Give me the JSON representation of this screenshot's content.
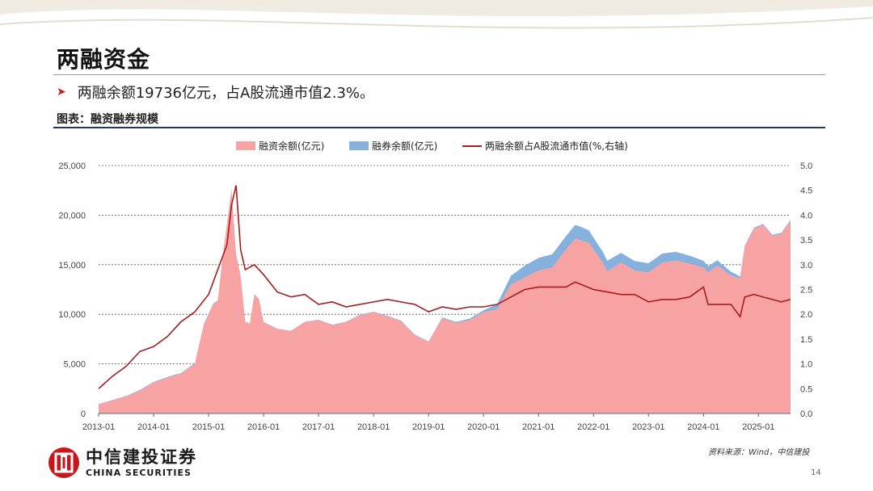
{
  "page": {
    "title": "两融资金",
    "bullet": "两融余额19736亿元，占A股流通市值2.3%。",
    "caption": "图表：融资融券规模",
    "source": "资料来源：Wind，中信建投",
    "page_number": "14",
    "logo_cn": "中信建投证券",
    "logo_en": "CHINA SECURITIES"
  },
  "colors": {
    "financing": "#f7a3a3",
    "securities_lending": "#86b1dd",
    "ratio_line": "#a71d1d",
    "accent_red": "#c21f1f"
  },
  "chart_data": {
    "type": "area",
    "x_ticks": [
      "2013-01",
      "2014-01",
      "2015-01",
      "2016-01",
      "2017-01",
      "2018-01",
      "2019-01",
      "2020-01",
      "2021-01",
      "2022-01",
      "2023-01",
      "2024-01",
      "2025-01"
    ],
    "x_range": [
      "2013-01",
      "2025-08"
    ],
    "y_left": {
      "ticks": [
        "0",
        "5,000",
        "10,000",
        "15,000",
        "20,000",
        "25,000"
      ],
      "range": [
        0,
        25000
      ]
    },
    "y_right": {
      "ticks": [
        "0.0",
        "0.5",
        "1.0",
        "1.5",
        "2.0",
        "2.5",
        "3.0",
        "3.5",
        "4.0",
        "4.5",
        "5.0"
      ],
      "range": [
        0,
        5.0
      ]
    },
    "grid": "horizontal dashed",
    "legend_position": "top",
    "series": [
      {
        "name": "融资余额(亿元)",
        "axis": "left",
        "kind": "area",
        "points": [
          [
            "2013-01",
            900
          ],
          [
            "2013-04",
            1300
          ],
          [
            "2013-07",
            1700
          ],
          [
            "2013-10",
            2300
          ],
          [
            "2014-01",
            3100
          ],
          [
            "2014-04",
            3600
          ],
          [
            "2014-07",
            4000
          ],
          [
            "2014-10",
            5000
          ],
          [
            "2014-12",
            9000
          ],
          [
            "2015-02",
            11000
          ],
          [
            "2015-03",
            11300
          ],
          [
            "2015-04",
            15500
          ],
          [
            "2015-05",
            19000
          ],
          [
            "2015-06",
            22500
          ],
          [
            "2015-07",
            16000
          ],
          [
            "2015-08",
            13800
          ],
          [
            "2015-09",
            9200
          ],
          [
            "2015-10",
            9000
          ],
          [
            "2015-11",
            12000
          ],
          [
            "2015-12",
            11500
          ],
          [
            "2016-01",
            9200
          ],
          [
            "2016-04",
            8500
          ],
          [
            "2016-07",
            8300
          ],
          [
            "2016-10",
            9200
          ],
          [
            "2017-01",
            9400
          ],
          [
            "2017-04",
            8900
          ],
          [
            "2017-07",
            9200
          ],
          [
            "2017-10",
            9900
          ],
          [
            "2018-01",
            10200
          ],
          [
            "2018-04",
            9800
          ],
          [
            "2018-07",
            9300
          ],
          [
            "2018-10",
            7900
          ],
          [
            "2019-01",
            7200
          ],
          [
            "2019-04",
            9600
          ],
          [
            "2019-07",
            9100
          ],
          [
            "2019-10",
            9400
          ],
          [
            "2020-01",
            10200
          ],
          [
            "2020-04",
            10500
          ],
          [
            "2020-07",
            13000
          ],
          [
            "2020-10",
            13700
          ],
          [
            "2021-01",
            14400
          ],
          [
            "2021-04",
            14700
          ],
          [
            "2021-07",
            16500
          ],
          [
            "2021-09",
            17600
          ],
          [
            "2021-12",
            17200
          ],
          [
            "2022-03",
            15200
          ],
          [
            "2022-04",
            14300
          ],
          [
            "2022-07",
            15200
          ],
          [
            "2022-10",
            14400
          ],
          [
            "2023-01",
            14200
          ],
          [
            "2023-04",
            15200
          ],
          [
            "2023-07",
            15400
          ],
          [
            "2023-10",
            15100
          ],
          [
            "2024-01",
            14700
          ],
          [
            "2024-02",
            14200
          ],
          [
            "2024-04",
            14900
          ],
          [
            "2024-07",
            13900
          ],
          [
            "2024-09",
            13600
          ],
          [
            "2024-10",
            16800
          ],
          [
            "2024-12",
            18600
          ],
          [
            "2025-02",
            19000
          ],
          [
            "2025-04",
            17900
          ],
          [
            "2025-06",
            18100
          ],
          [
            "2025-08",
            19400
          ]
        ]
      },
      {
        "name": "融券余额(亿元)",
        "axis": "left",
        "kind": "stacked-area",
        "points": [
          [
            "2013-01",
            50
          ],
          [
            "2014-01",
            80
          ],
          [
            "2015-01",
            80
          ],
          [
            "2015-06",
            100
          ],
          [
            "2016-01",
            40
          ],
          [
            "2017-01",
            50
          ],
          [
            "2018-01",
            60
          ],
          [
            "2019-01",
            60
          ],
          [
            "2020-01",
            200
          ],
          [
            "2020-07",
            900
          ],
          [
            "2020-10",
            1200
          ],
          [
            "2021-01",
            1300
          ],
          [
            "2021-07",
            1400
          ],
          [
            "2021-10",
            1400
          ],
          [
            "2022-01",
            1200
          ],
          [
            "2022-07",
            1000
          ],
          [
            "2023-01",
            950
          ],
          [
            "2023-07",
            900
          ],
          [
            "2024-01",
            700
          ],
          [
            "2024-07",
            400
          ],
          [
            "2024-10",
            120
          ],
          [
            "2025-01",
            120
          ],
          [
            "2025-08",
            120
          ]
        ]
      },
      {
        "name": "两融余额占A股流通市值(%,右轴)",
        "axis": "right",
        "kind": "line",
        "points": [
          [
            "2013-01",
            0.5
          ],
          [
            "2013-04",
            0.75
          ],
          [
            "2013-07",
            0.95
          ],
          [
            "2013-10",
            1.25
          ],
          [
            "2014-01",
            1.35
          ],
          [
            "2014-04",
            1.55
          ],
          [
            "2014-07",
            1.85
          ],
          [
            "2014-10",
            2.05
          ],
          [
            "2015-01",
            2.4
          ],
          [
            "2015-03",
            2.9
          ],
          [
            "2015-05",
            3.4
          ],
          [
            "2015-06",
            4.2
          ],
          [
            "2015-07",
            4.6
          ],
          [
            "2015-08",
            3.3
          ],
          [
            "2015-09",
            2.9
          ],
          [
            "2015-11",
            3.0
          ],
          [
            "2016-01",
            2.8
          ],
          [
            "2016-04",
            2.45
          ],
          [
            "2016-07",
            2.35
          ],
          [
            "2016-10",
            2.4
          ],
          [
            "2017-01",
            2.2
          ],
          [
            "2017-04",
            2.25
          ],
          [
            "2017-07",
            2.15
          ],
          [
            "2017-10",
            2.2
          ],
          [
            "2018-01",
            2.25
          ],
          [
            "2018-04",
            2.3
          ],
          [
            "2018-07",
            2.25
          ],
          [
            "2018-10",
            2.2
          ],
          [
            "2019-01",
            2.05
          ],
          [
            "2019-04",
            2.15
          ],
          [
            "2019-07",
            2.1
          ],
          [
            "2019-10",
            2.15
          ],
          [
            "2020-01",
            2.15
          ],
          [
            "2020-04",
            2.2
          ],
          [
            "2020-07",
            2.35
          ],
          [
            "2020-10",
            2.5
          ],
          [
            "2021-01",
            2.55
          ],
          [
            "2021-04",
            2.55
          ],
          [
            "2021-07",
            2.55
          ],
          [
            "2021-09",
            2.65
          ],
          [
            "2022-01",
            2.5
          ],
          [
            "2022-04",
            2.45
          ],
          [
            "2022-07",
            2.4
          ],
          [
            "2022-10",
            2.4
          ],
          [
            "2023-01",
            2.25
          ],
          [
            "2023-04",
            2.3
          ],
          [
            "2023-07",
            2.3
          ],
          [
            "2023-10",
            2.35
          ],
          [
            "2024-01",
            2.55
          ],
          [
            "2024-02",
            2.2
          ],
          [
            "2024-04",
            2.2
          ],
          [
            "2024-07",
            2.2
          ],
          [
            "2024-09",
            1.95
          ],
          [
            "2024-10",
            2.35
          ],
          [
            "2024-12",
            2.4
          ],
          [
            "2025-02",
            2.35
          ],
          [
            "2025-04",
            2.3
          ],
          [
            "2025-06",
            2.25
          ],
          [
            "2025-08",
            2.3
          ]
        ]
      }
    ]
  }
}
